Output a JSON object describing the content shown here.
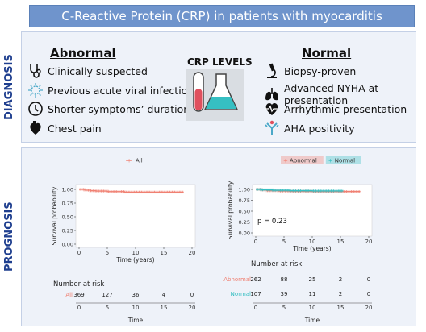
{
  "title": "C-Reactive Protein (CRP) in patients with myocarditis",
  "sections": {
    "diagnosis_label": "DIAGNOSIS",
    "prognosis_label": "PROGNOSIS"
  },
  "diagnosis": {
    "abnormal_header": "Abnormal",
    "normal_header": "Normal",
    "crp_label": "CRP LEVELS",
    "abnormal_items": [
      {
        "label": "Clinically suspected",
        "icon": "stethoscope-icon"
      },
      {
        "label": "Previous acute viral infection",
        "icon": "virus-icon"
      },
      {
        "label": "Shorter symptoms’ duration",
        "icon": "clock-icon"
      },
      {
        "label": "Chest pain",
        "icon": "heart-icon"
      }
    ],
    "normal_items": [
      {
        "label": "Biopsy-proven",
        "icon": "microscope-icon"
      },
      {
        "label": "Advanced NYHA at presentation",
        "icon": "lungs-icon"
      },
      {
        "label": "Arrhythmic presentation",
        "icon": "heartbeat-icon"
      },
      {
        "label": "AHA positivity",
        "icon": "antibody-icon"
      }
    ]
  },
  "colors": {
    "title_bg": "#6f94cc",
    "section_label": "#1f3f8f",
    "abnormal": "#f08072",
    "normal": "#36bfc2",
    "all": "#f08072"
  },
  "chart_data": [
    {
      "type": "line",
      "legend": [
        "All"
      ],
      "ylabel": "Survival probability",
      "xlabel": "Time (years)",
      "ylim": [
        0,
        1
      ],
      "yticks": [
        "0.00",
        "0.25",
        "0.50",
        "0.75",
        "1.00"
      ],
      "xticks": [
        "0",
        "5",
        "10",
        "15",
        "20"
      ],
      "series": [
        {
          "name": "All",
          "x": [
            0,
            1,
            2,
            3,
            5,
            8,
            12,
            18.5
          ],
          "y": [
            1.0,
            0.985,
            0.975,
            0.97,
            0.96,
            0.95,
            0.95,
            0.95
          ]
        }
      ],
      "risk_table": {
        "title": "Number at risk",
        "xlabel": "Time",
        "rows": [
          {
            "name": "All",
            "values": [
              "369",
              "127",
              "36",
              "4",
              "0"
            ]
          }
        ]
      }
    },
    {
      "type": "line",
      "legend": [
        "Abnormal",
        "Normal"
      ],
      "ylabel": "Survival probability",
      "xlabel": "Time (years)",
      "ylim": [
        0,
        1
      ],
      "yticks": [
        "0.00",
        "0.25",
        "0.50",
        "0.75",
        "1.00"
      ],
      "xticks": [
        "0",
        "5",
        "10",
        "15",
        "20"
      ],
      "annotation": "p = 0.23",
      "series": [
        {
          "name": "Abnormal",
          "x": [
            0,
            1,
            2,
            4,
            6,
            10,
            15,
            18.5
          ],
          "y": [
            1.0,
            0.985,
            0.97,
            0.96,
            0.955,
            0.95,
            0.95,
            0.95
          ]
        },
        {
          "name": "Normal",
          "x": [
            0,
            1,
            3,
            6,
            10,
            15.5
          ],
          "y": [
            1.0,
            0.99,
            0.98,
            0.97,
            0.965,
            0.965
          ]
        }
      ],
      "risk_table": {
        "title": "Number at risk",
        "xlabel": "Time",
        "rows": [
          {
            "name": "Abnormal",
            "values": [
              "262",
              "88",
              "25",
              "2",
              "0"
            ]
          },
          {
            "name": "Normal",
            "values": [
              "107",
              "39",
              "11",
              "2",
              "0"
            ]
          }
        ]
      }
    }
  ]
}
